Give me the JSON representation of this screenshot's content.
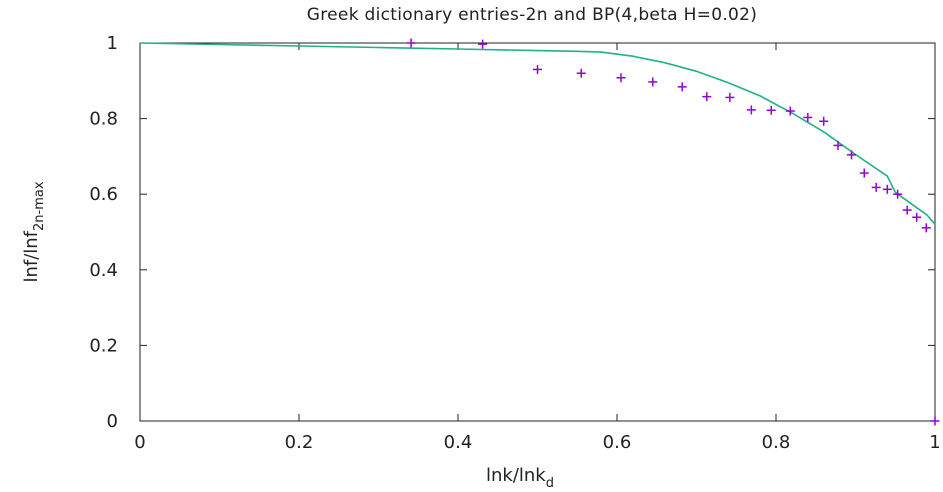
{
  "chart_data": {
    "type": "scatter",
    "title": "Greek dictionary entries-2n and BP(4,beta H=0.02)",
    "xlabel": {
      "main": "lnk/lnk",
      "sub": "d"
    },
    "ylabel": {
      "main": "lnf/lnf",
      "sub": "2n-max"
    },
    "xlim": [
      0,
      1
    ],
    "ylim": [
      0,
      1
    ],
    "x_ticks": [
      "0",
      "0.2",
      "0.4",
      "0.6",
      "0.8",
      "1"
    ],
    "y_ticks": [
      "0",
      "0.2",
      "0.4",
      "0.6",
      "0.8",
      "1"
    ],
    "grid": false,
    "legend": "none",
    "series": [
      {
        "kind": "points",
        "marker": "+",
        "color": "#9400d3",
        "x": [
          0.341,
          0.431,
          0.5,
          0.555,
          0.605,
          0.645,
          0.682,
          0.713,
          0.742,
          0.769,
          0.794,
          0.818,
          0.84,
          0.86,
          0.878,
          0.895,
          0.911,
          0.926,
          0.94,
          0.953,
          0.965,
          0.977,
          0.989,
          1.0
        ],
        "y": [
          1.0,
          0.997,
          0.93,
          0.92,
          0.908,
          0.897,
          0.884,
          0.858,
          0.856,
          0.823,
          0.822,
          0.82,
          0.803,
          0.793,
          0.729,
          0.704,
          0.656,
          0.618,
          0.613,
          0.6,
          0.558,
          0.539,
          0.511,
          0.0
        ]
      },
      {
        "kind": "line",
        "color": "#20b08a",
        "x": [
          0,
          0.1,
          0.2,
          0.3,
          0.4,
          0.5,
          0.55,
          0.58,
          0.62,
          0.66,
          0.7,
          0.74,
          0.78,
          0.82,
          0.86,
          0.9,
          0.94,
          0.95,
          0.97,
          0.99,
          1.0
        ],
        "y": [
          1.0,
          0.996,
          0.992,
          0.988,
          0.984,
          0.98,
          0.978,
          0.976,
          0.965,
          0.948,
          0.925,
          0.895,
          0.86,
          0.815,
          0.765,
          0.705,
          0.648,
          0.605,
          0.575,
          0.545,
          0.52
        ]
      }
    ]
  }
}
